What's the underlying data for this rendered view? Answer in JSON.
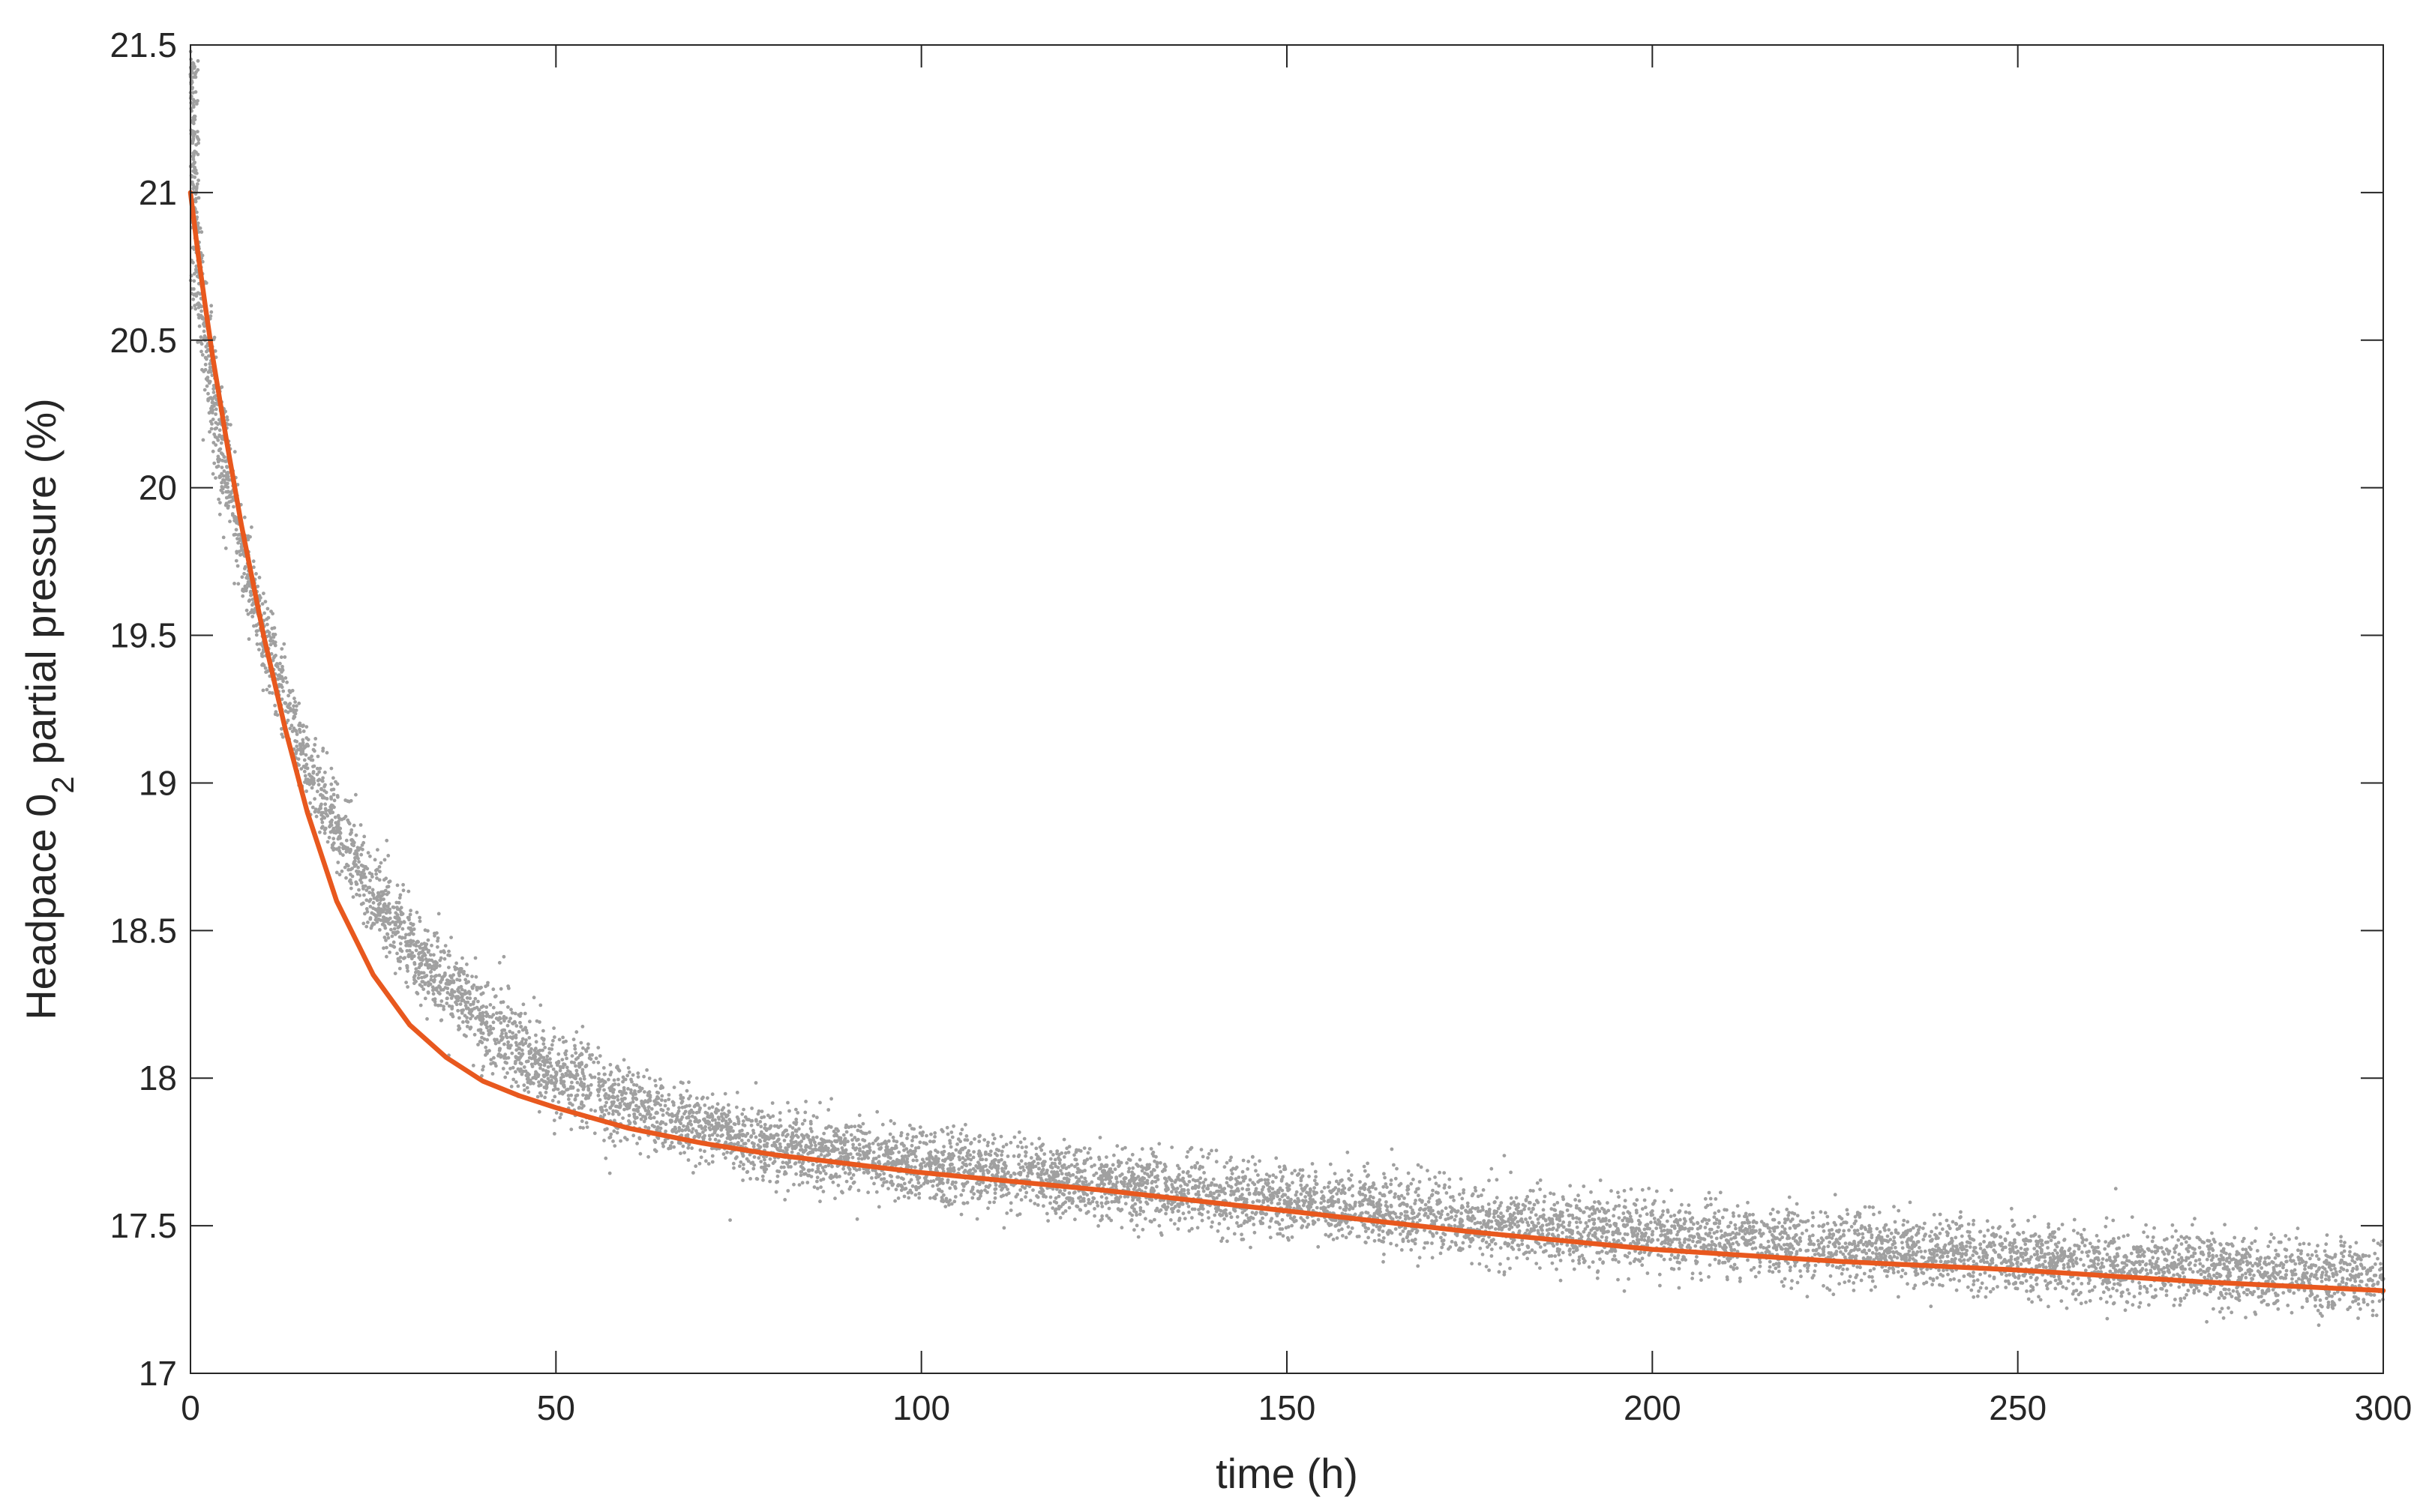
{
  "chart_data": {
    "type": "scatter",
    "xlabel": "time (h)",
    "ylabel": {
      "prefix": "Headpace 0",
      "subscript": "2",
      "suffix": " partial pressure (%)"
    },
    "xlim": [
      0,
      300
    ],
    "ylim": [
      17,
      21.5
    ],
    "x_ticks": [
      0,
      50,
      100,
      150,
      200,
      250,
      300
    ],
    "y_ticks": [
      17,
      17.5,
      18,
      18.5,
      19,
      19.5,
      20,
      20.5,
      21,
      21.5
    ],
    "grid": false,
    "box": true,
    "series": [
      {
        "kind": "scatter",
        "color": "#a0a0a0",
        "points": [
          [
            0,
            21.4
          ],
          [
            0.5,
            21.1
          ],
          [
            1,
            20.8
          ],
          [
            2,
            20.5
          ],
          [
            3,
            20.3
          ],
          [
            5,
            20.05
          ],
          [
            7,
            19.8
          ],
          [
            10,
            19.5
          ],
          [
            13,
            19.27
          ],
          [
            16,
            19.05
          ],
          [
            20,
            18.85
          ],
          [
            25,
            18.62
          ],
          [
            30,
            18.45
          ],
          [
            35,
            18.32
          ],
          [
            40,
            18.2
          ],
          [
            45,
            18.1
          ],
          [
            50,
            18.02
          ],
          [
            60,
            17.9
          ],
          [
            70,
            17.83
          ],
          [
            80,
            17.77
          ],
          [
            90,
            17.73
          ],
          [
            100,
            17.7
          ],
          [
            125,
            17.64
          ],
          [
            150,
            17.58
          ],
          [
            175,
            17.52
          ],
          [
            200,
            17.47
          ],
          [
            225,
            17.43
          ],
          [
            250,
            17.39
          ],
          [
            275,
            17.35
          ],
          [
            300,
            17.32
          ]
        ]
      },
      {
        "kind": "line",
        "color": "#e8581e",
        "x": [
          0,
          1,
          2,
          3,
          5,
          7,
          10,
          13,
          16,
          20,
          25,
          30,
          35,
          40,
          45,
          50,
          60,
          70,
          80,
          90,
          100,
          125,
          150,
          175,
          200,
          225,
          250,
          275,
          300
        ],
        "y": [
          21.0,
          20.8,
          20.62,
          20.45,
          20.15,
          19.87,
          19.5,
          19.18,
          18.9,
          18.6,
          18.35,
          18.18,
          18.07,
          17.99,
          17.94,
          17.9,
          17.83,
          17.78,
          17.74,
          17.71,
          17.68,
          17.62,
          17.55,
          17.48,
          17.42,
          17.38,
          17.35,
          17.31,
          17.28
        ]
      }
    ]
  }
}
